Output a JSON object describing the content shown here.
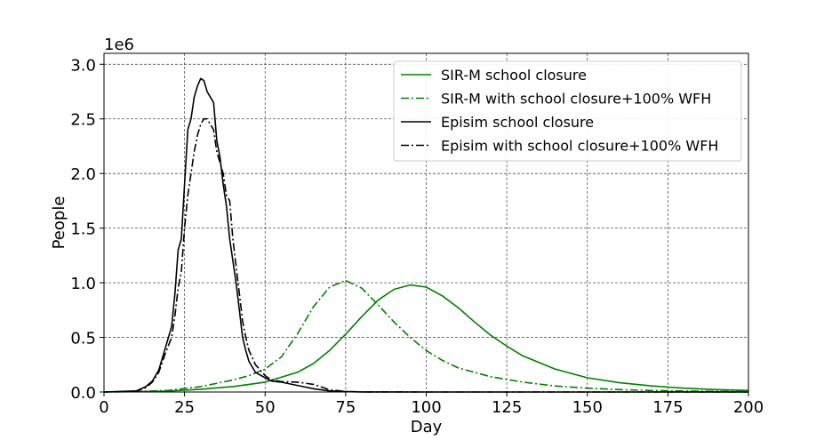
{
  "chart_data": {
    "type": "line",
    "title": "",
    "xlabel": "Day",
    "ylabel": "People",
    "y_multiplier_label": "1e6",
    "xlim": [
      0,
      200
    ],
    "ylim": [
      0,
      3100000
    ],
    "xticks": [
      0,
      25,
      50,
      75,
      100,
      125,
      150,
      175,
      200
    ],
    "yticks": [
      0,
      500000,
      1000000,
      1500000,
      2000000,
      2500000,
      3000000
    ],
    "ytick_labels": [
      "0.0",
      "0.5",
      "1.0",
      "1.5",
      "2.0",
      "2.5",
      "3.0"
    ],
    "grid": true,
    "legend_position": "top-right",
    "series": [
      {
        "name": "SIR-M school closure",
        "color": "#008000",
        "dash": "solid",
        "x": [
          0,
          10,
          20,
          30,
          40,
          50,
          60,
          65,
          70,
          75,
          80,
          85,
          90,
          95,
          100,
          105,
          110,
          115,
          120,
          125,
          130,
          140,
          150,
          160,
          170,
          180,
          190,
          200
        ],
        "y": [
          0,
          3000,
          8000,
          25000,
          50000,
          90000,
          180000,
          260000,
          380000,
          530000,
          690000,
          840000,
          940000,
          980000,
          960000,
          880000,
          770000,
          640000,
          520000,
          420000,
          330000,
          210000,
          130000,
          85000,
          55000,
          35000,
          22000,
          15000
        ]
      },
      {
        "name": "SIR-M with school closure+100% WFH",
        "color": "#008000",
        "dash": "dashdot",
        "x": [
          0,
          10,
          20,
          30,
          40,
          45,
          50,
          55,
          60,
          65,
          70,
          75,
          80,
          85,
          90,
          95,
          100,
          105,
          110,
          120,
          130,
          140,
          150,
          160,
          170,
          180,
          190,
          200
        ],
        "y": [
          0,
          5000,
          15000,
          50000,
          110000,
          150000,
          210000,
          320000,
          530000,
          780000,
          960000,
          1020000,
          950000,
          800000,
          640000,
          500000,
          380000,
          290000,
          220000,
          140000,
          90000,
          55000,
          35000,
          22000,
          14000,
          9000,
          6000,
          4000
        ]
      },
      {
        "name": "Episim school closure",
        "color": "#000000",
        "dash": "solid",
        "x": [
          0,
          10,
          13,
          15,
          17,
          19,
          21,
          22,
          23,
          24,
          25,
          26,
          27,
          28,
          29,
          30,
          31,
          32,
          33,
          34,
          35,
          36,
          37,
          38,
          39,
          40,
          41,
          42,
          43,
          44,
          45,
          47,
          50,
          52,
          55,
          60,
          65,
          70,
          75,
          80,
          100,
          150,
          200
        ],
        "y": [
          0,
          10000,
          50000,
          100000,
          200000,
          400000,
          600000,
          900000,
          1300000,
          1400000,
          1900000,
          2400000,
          2500000,
          2700000,
          2800000,
          2870000,
          2850000,
          2750000,
          2700000,
          2650000,
          2300000,
          2150000,
          1900000,
          1700000,
          1400000,
          1200000,
          1000000,
          750000,
          500000,
          380000,
          280000,
          180000,
          130000,
          100000,
          90000,
          60000,
          30000,
          10000,
          3000,
          1000,
          0,
          0,
          0
        ]
      },
      {
        "name": "Episim with school closure+100% WFH",
        "color": "#000000",
        "dash": "dashdot",
        "x": [
          0,
          10,
          13,
          15,
          17,
          19,
          21,
          22,
          23,
          24,
          25,
          26,
          27,
          28,
          29,
          30,
          31,
          32,
          33,
          34,
          35,
          36,
          37,
          38,
          39,
          40,
          41,
          42,
          43,
          44,
          45,
          47,
          50,
          52,
          55,
          60,
          65,
          70,
          75,
          80,
          100,
          150,
          200
        ],
        "y": [
          0,
          8000,
          40000,
          90000,
          180000,
          350000,
          500000,
          700000,
          950000,
          1100000,
          1500000,
          1800000,
          2000000,
          2200000,
          2350000,
          2450000,
          2500000,
          2500000,
          2450000,
          2400000,
          2200000,
          2100000,
          2000000,
          1800000,
          1750000,
          1400000,
          1150000,
          900000,
          650000,
          500000,
          380000,
          250000,
          150000,
          110000,
          95000,
          90000,
          70000,
          20000,
          5000,
          1000,
          0,
          0,
          0
        ]
      }
    ]
  }
}
